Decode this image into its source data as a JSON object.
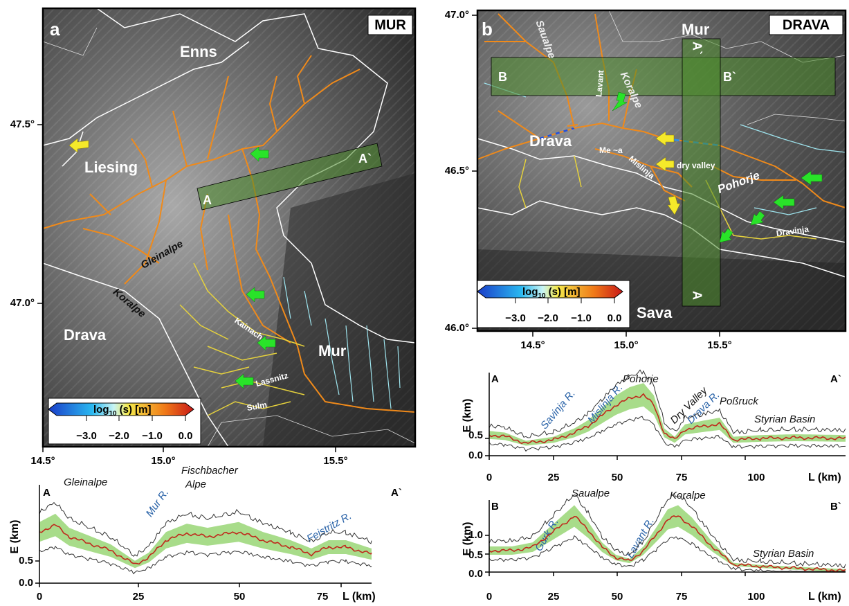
{
  "panel_a": {
    "label": "a",
    "title": "MUR",
    "places": {
      "enns": "Enns",
      "liesing": "Liesing",
      "gleinalpe": "Gleinalpe",
      "koralpe": "Koralpe",
      "drava": "Drava",
      "mur": "Mur",
      "kainach": "Kainach",
      "lassnitz": "Lassnitz",
      "sulm": "Sulm",
      "swath_start": "A",
      "swath_end": "A`"
    },
    "lon_ticks": [
      "14.5°",
      "15.0°",
      "15.5°"
    ],
    "lat_ticks": [
      "47.5°",
      "47.0°"
    ],
    "colorbar": {
      "label_prefix": "log",
      "label_sub": "10",
      "label_suffix": "(s) [m]",
      "ticks": [
        "−3.0",
        "−2.0",
        "−1.0",
        "0.0"
      ]
    }
  },
  "panel_b": {
    "label": "b",
    "title": "DRAVA",
    "places": {
      "saualpe": "Saualpe",
      "mur": "Mur",
      "koralpe": "Koralpe",
      "lavant": "Lavant",
      "drava": "Drava",
      "meza": "Me ~a",
      "mislinja": "Mislinja",
      "dry_valley": "dry valley",
      "pohorje": "Pohorje",
      "dravinja": "Dravinja",
      "sava": "Sava",
      "b_start": "B",
      "b_end": "B`",
      "a_end": "A`",
      "a_start": "A"
    },
    "lon_ticks": [
      "14.5°",
      "15.0°",
      "15.5°"
    ],
    "lat_ticks": [
      "47.0°",
      "46.5°",
      "46.0°"
    ],
    "colorbar": {
      "label_prefix": "log",
      "label_sub": "10",
      "label_suffix": "(s) [m]",
      "ticks": [
        "−3.0",
        "−2.0",
        "−1.0",
        "0.0"
      ]
    }
  },
  "profile_a": {
    "start": "A",
    "end": "A`",
    "y_label": "E (km)",
    "x_label": "L (km)",
    "yticks": [
      "0.0",
      "0.5"
    ],
    "xticks": [
      "0",
      "25",
      "50",
      "75"
    ],
    "annotations": [
      "Gleinalpe",
      "Fischbacher",
      "Alpe",
      "Mur R.",
      "Feistritz R."
    ]
  },
  "profile_b_aa": {
    "start": "A",
    "end": "A`",
    "y_label": "E (km)",
    "x_label": "L (km)",
    "yticks": [
      "0.0",
      "0.5"
    ],
    "xticks": [
      "0",
      "25",
      "50",
      "75",
      "100"
    ],
    "annotations": [
      "Savinja R.",
      "Mislinja R.",
      "Pohorje",
      "Dry Valley",
      "Drava R.",
      "Poßruck",
      "Styrian Basin"
    ]
  },
  "profile_b_bb": {
    "start": "B",
    "end": "B`",
    "y_label": "E (km)",
    "x_label": "L (km)",
    "yticks": [
      "0.0",
      "0.5",
      "1.0"
    ],
    "xticks": [
      "0",
      "25",
      "50",
      "75",
      "100"
    ],
    "annotations": [
      "Gurk R.",
      "Saualpe",
      "Lavant R.",
      "Koralpe",
      "Styrian Basin"
    ]
  }
}
